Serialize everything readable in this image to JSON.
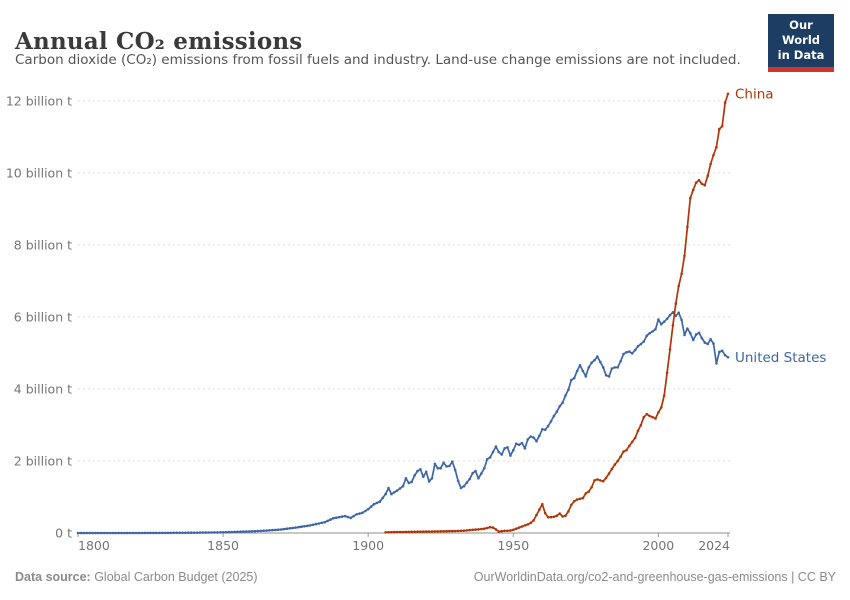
{
  "header": {
    "title": "Annual CO₂ emissions",
    "subtitle": "Carbon dioxide (CO₂) emissions from fossil fuels and industry. Land-use change emissions are not included.",
    "logo": {
      "line1": "Our World",
      "line2": "in Data",
      "bg_color": "#1d3d63",
      "accent_color": "#d1352b"
    }
  },
  "footer": {
    "source_label": "Data source:",
    "source_value": " Global Carbon Budget (2025)",
    "link_text": "OurWorldinData.org/co2-and-greenhouse-gas-emissions | CC BY"
  },
  "chart_data": {
    "type": "line",
    "title": "Annual CO₂ emissions",
    "xlabel": "",
    "ylabel": "",
    "grid": "horizontal-dashed",
    "legend_position": "line-end-labels",
    "x_axis": {
      "range": [
        1800,
        2024
      ],
      "ticks": [
        1800,
        1850,
        1900,
        1950,
        2000,
        2024
      ]
    },
    "y_axis": {
      "range": [
        0,
        12.4
      ],
      "unit": "billion t",
      "ticks": [
        0,
        2,
        4,
        6,
        8,
        10,
        12
      ],
      "tick_labels": [
        "0 t",
        "2 billion t",
        "4 billion t",
        "6 billion t",
        "8 billion t",
        "10 billion t",
        "12 billion t"
      ]
    },
    "colors": {
      "axis_text": "#757575",
      "gridline": "#dcdcdc",
      "axis_line": "#8f8f8f"
    },
    "series": [
      {
        "name": "United States",
        "color": "#3D66A6",
        "points": [
          [
            1800,
            0.0001
          ],
          [
            1810,
            0.0003
          ],
          [
            1820,
            0.0008
          ],
          [
            1830,
            0.003
          ],
          [
            1840,
            0.008
          ],
          [
            1845,
            0.013
          ],
          [
            1850,
            0.02
          ],
          [
            1855,
            0.032
          ],
          [
            1860,
            0.047
          ],
          [
            1865,
            0.068
          ],
          [
            1870,
            0.098
          ],
          [
            1875,
            0.15
          ],
          [
            1880,
            0.21
          ],
          [
            1885,
            0.3
          ],
          [
            1888,
            0.41
          ],
          [
            1890,
            0.44
          ],
          [
            1892,
            0.47
          ],
          [
            1894,
            0.42
          ],
          [
            1896,
            0.52
          ],
          [
            1898,
            0.56
          ],
          [
            1900,
            0.66
          ],
          [
            1902,
            0.8
          ],
          [
            1904,
            0.87
          ],
          [
            1906,
            1.08
          ],
          [
            1907,
            1.25
          ],
          [
            1908,
            1.08
          ],
          [
            1910,
            1.18
          ],
          [
            1912,
            1.3
          ],
          [
            1913,
            1.52
          ],
          [
            1914,
            1.39
          ],
          [
            1915,
            1.42
          ],
          [
            1916,
            1.6
          ],
          [
            1917,
            1.72
          ],
          [
            1918,
            1.77
          ],
          [
            1919,
            1.56
          ],
          [
            1920,
            1.7
          ],
          [
            1921,
            1.43
          ],
          [
            1922,
            1.52
          ],
          [
            1923,
            1.92
          ],
          [
            1924,
            1.8
          ],
          [
            1925,
            1.8
          ],
          [
            1926,
            1.95
          ],
          [
            1927,
            1.85
          ],
          [
            1928,
            1.86
          ],
          [
            1929,
            1.98
          ],
          [
            1930,
            1.75
          ],
          [
            1931,
            1.45
          ],
          [
            1932,
            1.25
          ],
          [
            1933,
            1.3
          ],
          [
            1934,
            1.4
          ],
          [
            1935,
            1.5
          ],
          [
            1936,
            1.66
          ],
          [
            1937,
            1.72
          ],
          [
            1938,
            1.52
          ],
          [
            1939,
            1.65
          ],
          [
            1940,
            1.8
          ],
          [
            1941,
            2.05
          ],
          [
            1942,
            2.1
          ],
          [
            1943,
            2.25
          ],
          [
            1944,
            2.4
          ],
          [
            1945,
            2.25
          ],
          [
            1946,
            2.18
          ],
          [
            1947,
            2.35
          ],
          [
            1948,
            2.38
          ],
          [
            1949,
            2.15
          ],
          [
            1950,
            2.3
          ],
          [
            1951,
            2.48
          ],
          [
            1952,
            2.45
          ],
          [
            1953,
            2.5
          ],
          [
            1954,
            2.35
          ],
          [
            1955,
            2.6
          ],
          [
            1956,
            2.68
          ],
          [
            1957,
            2.65
          ],
          [
            1958,
            2.55
          ],
          [
            1959,
            2.7
          ],
          [
            1960,
            2.88
          ],
          [
            1961,
            2.87
          ],
          [
            1962,
            2.97
          ],
          [
            1963,
            3.1
          ],
          [
            1964,
            3.25
          ],
          [
            1965,
            3.37
          ],
          [
            1966,
            3.52
          ],
          [
            1967,
            3.62
          ],
          [
            1968,
            3.82
          ],
          [
            1969,
            3.98
          ],
          [
            1970,
            4.25
          ],
          [
            1971,
            4.3
          ],
          [
            1972,
            4.5
          ],
          [
            1973,
            4.66
          ],
          [
            1974,
            4.5
          ],
          [
            1975,
            4.35
          ],
          [
            1976,
            4.6
          ],
          [
            1977,
            4.73
          ],
          [
            1978,
            4.8
          ],
          [
            1979,
            4.9
          ],
          [
            1980,
            4.75
          ],
          [
            1981,
            4.6
          ],
          [
            1982,
            4.38
          ],
          [
            1983,
            4.35
          ],
          [
            1984,
            4.57
          ],
          [
            1985,
            4.6
          ],
          [
            1986,
            4.6
          ],
          [
            1987,
            4.77
          ],
          [
            1988,
            4.97
          ],
          [
            1989,
            5.02
          ],
          [
            1990,
            5.04
          ],
          [
            1991,
            4.99
          ],
          [
            1992,
            5.08
          ],
          [
            1993,
            5.19
          ],
          [
            1994,
            5.25
          ],
          [
            1995,
            5.32
          ],
          [
            1996,
            5.48
          ],
          [
            1997,
            5.55
          ],
          [
            1998,
            5.6
          ],
          [
            1999,
            5.66
          ],
          [
            2000,
            5.93
          ],
          [
            2001,
            5.8
          ],
          [
            2002,
            5.87
          ],
          [
            2003,
            5.95
          ],
          [
            2004,
            6.05
          ],
          [
            2005,
            6.13
          ],
          [
            2006,
            6.03
          ],
          [
            2007,
            6.12
          ],
          [
            2008,
            5.92
          ],
          [
            2009,
            5.5
          ],
          [
            2010,
            5.68
          ],
          [
            2011,
            5.55
          ],
          [
            2012,
            5.36
          ],
          [
            2013,
            5.51
          ],
          [
            2014,
            5.56
          ],
          [
            2015,
            5.41
          ],
          [
            2016,
            5.29
          ],
          [
            2017,
            5.25
          ],
          [
            2018,
            5.38
          ],
          [
            2019,
            5.26
          ],
          [
            2020,
            4.71
          ],
          [
            2021,
            5.03
          ],
          [
            2022,
            5.06
          ],
          [
            2023,
            4.94
          ],
          [
            2024,
            4.88
          ]
        ]
      },
      {
        "name": "China",
        "color": "#B13507",
        "points": [
          [
            1906,
            0.02
          ],
          [
            1910,
            0.027
          ],
          [
            1915,
            0.032
          ],
          [
            1920,
            0.04
          ],
          [
            1925,
            0.047
          ],
          [
            1930,
            0.055
          ],
          [
            1933,
            0.065
          ],
          [
            1936,
            0.09
          ],
          [
            1938,
            0.1
          ],
          [
            1940,
            0.12
          ],
          [
            1941,
            0.14
          ],
          [
            1942,
            0.16
          ],
          [
            1943,
            0.15
          ],
          [
            1944,
            0.1
          ],
          [
            1945,
            0.04
          ],
          [
            1946,
            0.05
          ],
          [
            1947,
            0.06
          ],
          [
            1948,
            0.06
          ],
          [
            1949,
            0.07
          ],
          [
            1950,
            0.09
          ],
          [
            1951,
            0.12
          ],
          [
            1952,
            0.15
          ],
          [
            1953,
            0.18
          ],
          [
            1954,
            0.21
          ],
          [
            1955,
            0.24
          ],
          [
            1956,
            0.28
          ],
          [
            1957,
            0.35
          ],
          [
            1958,
            0.5
          ],
          [
            1959,
            0.65
          ],
          [
            1960,
            0.8
          ],
          [
            1961,
            0.55
          ],
          [
            1962,
            0.44
          ],
          [
            1963,
            0.44
          ],
          [
            1964,
            0.45
          ],
          [
            1965,
            0.48
          ],
          [
            1966,
            0.54
          ],
          [
            1967,
            0.46
          ],
          [
            1968,
            0.48
          ],
          [
            1969,
            0.6
          ],
          [
            1970,
            0.78
          ],
          [
            1971,
            0.88
          ],
          [
            1972,
            0.93
          ],
          [
            1973,
            0.95
          ],
          [
            1974,
            0.97
          ],
          [
            1975,
            1.1
          ],
          [
            1976,
            1.15
          ],
          [
            1977,
            1.27
          ],
          [
            1978,
            1.46
          ],
          [
            1979,
            1.49
          ],
          [
            1980,
            1.46
          ],
          [
            1981,
            1.44
          ],
          [
            1982,
            1.53
          ],
          [
            1983,
            1.65
          ],
          [
            1984,
            1.78
          ],
          [
            1985,
            1.9
          ],
          [
            1986,
            2.0
          ],
          [
            1987,
            2.12
          ],
          [
            1988,
            2.26
          ],
          [
            1989,
            2.3
          ],
          [
            1990,
            2.42
          ],
          [
            1991,
            2.53
          ],
          [
            1992,
            2.64
          ],
          [
            1993,
            2.84
          ],
          [
            1994,
            3.0
          ],
          [
            1995,
            3.22
          ],
          [
            1996,
            3.3
          ],
          [
            1997,
            3.25
          ],
          [
            1998,
            3.22
          ],
          [
            1999,
            3.18
          ],
          [
            2000,
            3.35
          ],
          [
            2001,
            3.49
          ],
          [
            2002,
            3.82
          ],
          [
            2003,
            4.45
          ],
          [
            2004,
            5.1
          ],
          [
            2005,
            5.77
          ],
          [
            2006,
            6.37
          ],
          [
            2007,
            6.86
          ],
          [
            2008,
            7.2
          ],
          [
            2009,
            7.7
          ],
          [
            2010,
            8.5
          ],
          [
            2011,
            9.3
          ],
          [
            2012,
            9.53
          ],
          [
            2013,
            9.73
          ],
          [
            2014,
            9.8
          ],
          [
            2015,
            9.7
          ],
          [
            2016,
            9.66
          ],
          [
            2017,
            9.92
          ],
          [
            2018,
            10.25
          ],
          [
            2019,
            10.5
          ],
          [
            2020,
            10.72
          ],
          [
            2021,
            11.22
          ],
          [
            2022,
            11.3
          ],
          [
            2023,
            11.95
          ],
          [
            2024,
            12.2
          ]
        ]
      }
    ]
  }
}
